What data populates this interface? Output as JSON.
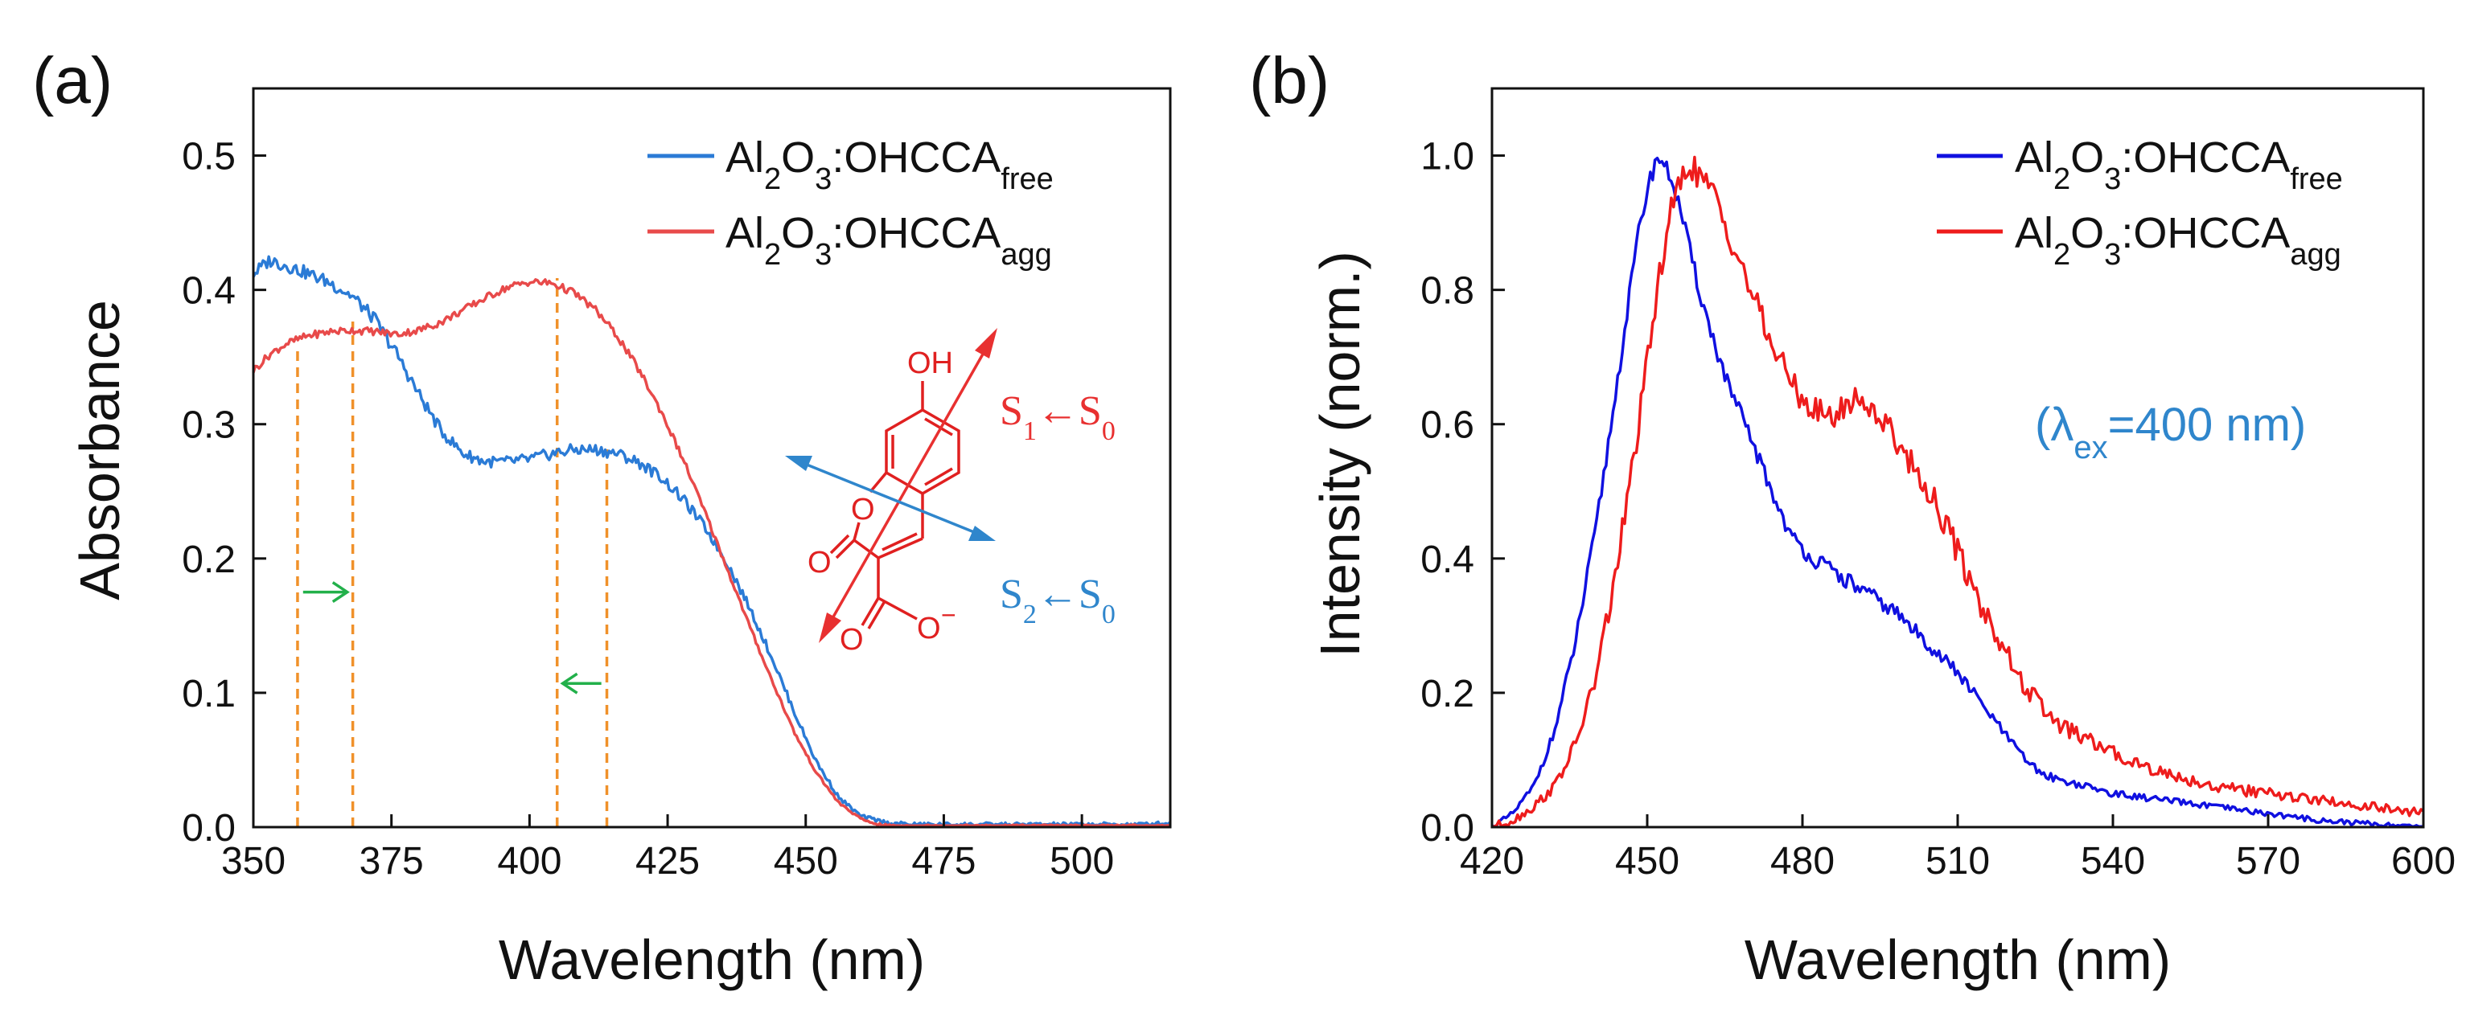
{
  "panels": [
    {
      "label": "(a)",
      "chart_data": {
        "type": "line",
        "title": "",
        "xlabel": "Wavelength (nm)",
        "ylabel": "Absorbance",
        "xlim": [
          350,
          516
        ],
        "ylim": [
          0,
          0.55
        ],
        "xticks": [
          350,
          375,
          400,
          425,
          450,
          475,
          500
        ],
        "xtick_labels": [
          "350",
          "375",
          "400",
          "425",
          "450",
          "475",
          "500"
        ],
        "yticks": [
          0,
          0.1,
          0.2,
          0.3,
          0.4,
          0.5
        ],
        "ytick_labels": [
          "0.0",
          "0.1",
          "0.2",
          "0.3",
          "0.4",
          "0.5"
        ],
        "grid": false,
        "legend_position": "top-right",
        "series": [
          {
            "name": "Al2O3:OHCCAfree",
            "legend_main": "Al",
            "legend_parts": [
              {
                "text": "Al",
                "sub": false
              },
              {
                "text": "2",
                "sub": true
              },
              {
                "text": "O",
                "sub": false
              },
              {
                "text": "3",
                "sub": true
              },
              {
                "text": ":OHCCA",
                "sub": false
              },
              {
                "text": "free",
                "sub": true
              }
            ],
            "color": "#2b7bd6",
            "x": [
              350,
              353,
              356,
              360,
              364,
              368,
              372,
              376,
              380,
              384,
              388,
              392,
              396,
              400,
              404,
              408,
              412,
              416,
              420,
              424,
              428,
              432,
              436,
              440,
              444,
              448,
              452,
              456,
              460,
              465,
              470,
              480,
              490,
              500,
              510,
              516
            ],
            "y": [
              0.412,
              0.422,
              0.418,
              0.412,
              0.405,
              0.395,
              0.378,
              0.352,
              0.322,
              0.295,
              0.278,
              0.272,
              0.272,
              0.274,
              0.278,
              0.281,
              0.281,
              0.278,
              0.271,
              0.26,
              0.243,
              0.222,
              0.195,
              0.162,
              0.125,
              0.085,
              0.048,
              0.022,
              0.008,
              0.003,
              0.002,
              0.002,
              0.002,
              0.002,
              0.002,
              0.003
            ]
          },
          {
            "name": "Al2O3:OHCCAagg",
            "legend_parts": [
              {
                "text": "Al",
                "sub": false
              },
              {
                "text": "2",
                "sub": true
              },
              {
                "text": "O",
                "sub": false
              },
              {
                "text": "3",
                "sub": true
              },
              {
                "text": ":OHCCA",
                "sub": false
              },
              {
                "text": "agg",
                "sub": true
              }
            ],
            "color": "#e84a4a",
            "x": [
              350,
              353,
              356,
              360,
              364,
              368,
              372,
              376,
              380,
              384,
              388,
              392,
              396,
              400,
              404,
              408,
              412,
              416,
              420,
              424,
              428,
              432,
              436,
              440,
              444,
              448,
              452,
              456,
              460,
              463,
              466,
              470,
              480,
              500,
              516
            ],
            "y": [
              0.34,
              0.352,
              0.36,
              0.366,
              0.369,
              0.37,
              0.369,
              0.367,
              0.37,
              0.376,
              0.385,
              0.394,
              0.402,
              0.406,
              0.405,
              0.398,
              0.385,
              0.365,
              0.339,
              0.308,
              0.272,
              0.232,
              0.19,
              0.148,
              0.108,
              0.07,
              0.04,
              0.018,
              0.006,
              0.002,
              0.001,
              0.001,
              0.001,
              0.001,
              0.001
            ]
          }
        ],
        "reference_lines": [
          {
            "x": 358,
            "color": "#f0912a"
          },
          {
            "x": 368,
            "color": "#f0912a"
          },
          {
            "x": 405,
            "color": "#f0912a"
          },
          {
            "x": 414,
            "color": "#f0912a"
          }
        ],
        "arrows": [
          {
            "from_x": 359,
            "to_x": 367,
            "y": 0.175,
            "color": "#22b04a"
          },
          {
            "from_x": 413,
            "to_x": 406,
            "y": 0.107,
            "color": "#22b04a"
          }
        ],
        "annotations": [
          {
            "label": "S1←S0",
            "parts": [
              {
                "text": "S",
                "sub": false
              },
              {
                "text": "1",
                "sub": true
              },
              {
                "text": "←",
                "sub": false
              },
              {
                "text": "S",
                "sub": false
              },
              {
                "text": "0",
                "sub": true
              }
            ],
            "color": "#e83030"
          },
          {
            "label": "S2←S0",
            "parts": [
              {
                "text": "S",
                "sub": false
              },
              {
                "text": "2",
                "sub": true
              },
              {
                "text": "←",
                "sub": false
              },
              {
                "text": "S",
                "sub": false
              },
              {
                "text": "0",
                "sub": true
              }
            ],
            "color": "#2f86cc"
          }
        ],
        "molecule": {
          "atoms": [
            "OH",
            "O",
            "O",
            "O",
            "O",
            "−"
          ],
          "color": "#e02020"
        }
      }
    },
    {
      "label": "(b)",
      "chart_data": {
        "type": "line",
        "title": "",
        "xlabel": "Wavelength (nm)",
        "ylabel": "Intensity (norm.)",
        "xlim": [
          420,
          600
        ],
        "ylim": [
          0,
          1.1
        ],
        "xticks": [
          420,
          450,
          480,
          510,
          540,
          570,
          600
        ],
        "xtick_labels": [
          "420",
          "450",
          "480",
          "510",
          "540",
          "570",
          "600"
        ],
        "yticks": [
          0,
          0.2,
          0.4,
          0.6,
          0.8,
          1.0
        ],
        "ytick_labels": [
          "0.0",
          "0.2",
          "0.4",
          "0.6",
          "0.8",
          "1.0"
        ],
        "grid": false,
        "legend_position": "top-right",
        "annotation": {
          "text": "(λex=400 nm)",
          "prefix": "(λ",
          "sub": "ex",
          "suffix": "=400 nm)",
          "color": "#2f86cc"
        },
        "series": [
          {
            "name": "Al2O3:OHCCAfree",
            "legend_parts": [
              {
                "text": "Al",
                "sub": false
              },
              {
                "text": "2",
                "sub": true
              },
              {
                "text": "O",
                "sub": false
              },
              {
                "text": "3",
                "sub": true
              },
              {
                "text": ":OHCCA",
                "sub": false
              },
              {
                "text": "free",
                "sub": true
              }
            ],
            "color": "#1010e0",
            "x": [
              420,
              424,
              428,
              432,
              436,
              440,
              444,
              448,
              450,
              452,
              453,
              455,
              457,
              460,
              463,
              466,
              470,
              474,
              478,
              482,
              486,
              490,
              494,
              498,
              502,
              506,
              510,
              514,
              518,
              522,
              526,
              530,
              540,
              550,
              560,
              570,
              580,
              590,
              600
            ],
            "y": [
              0.0,
              0.02,
              0.06,
              0.14,
              0.27,
              0.44,
              0.65,
              0.87,
              0.95,
              1.0,
              0.99,
              0.96,
              0.9,
              0.8,
              0.72,
              0.65,
              0.58,
              0.5,
              0.43,
              0.4,
              0.38,
              0.36,
              0.34,
              0.32,
              0.29,
              0.26,
              0.23,
              0.19,
              0.15,
              0.11,
              0.08,
              0.07,
              0.05,
              0.04,
              0.03,
              0.02,
              0.01,
              0.005,
              0.0
            ]
          },
          {
            "name": "Al2O3:OHCCAagg",
            "legend_parts": [
              {
                "text": "Al",
                "sub": false
              },
              {
                "text": "2",
                "sub": true
              },
              {
                "text": "O",
                "sub": false
              },
              {
                "text": "3",
                "sub": true
              },
              {
                "text": ":OHCCA",
                "sub": false
              },
              {
                "text": "agg",
                "sub": true
              }
            ],
            "color": "#ee1c1c",
            "x": [
              420,
              424,
              428,
              432,
              436,
              440,
              444,
              448,
              452,
              454,
              456,
              458,
              460,
              463,
              466,
              470,
              474,
              478,
              482,
              486,
              490,
              494,
              498,
              502,
              506,
              510,
              514,
              518,
              522,
              526,
              530,
              540,
              550,
              560,
              570,
              580,
              590,
              600
            ],
            "y": [
              0.0,
              0.01,
              0.03,
              0.06,
              0.12,
              0.22,
              0.38,
              0.58,
              0.8,
              0.9,
              0.95,
              0.99,
              0.97,
              0.94,
              0.88,
              0.8,
              0.72,
              0.66,
              0.62,
              0.61,
              0.64,
              0.62,
              0.58,
              0.53,
              0.48,
              0.41,
              0.34,
              0.28,
              0.22,
              0.18,
              0.15,
              0.11,
              0.08,
              0.06,
              0.05,
              0.04,
              0.03,
              0.02
            ]
          }
        ]
      }
    }
  ]
}
